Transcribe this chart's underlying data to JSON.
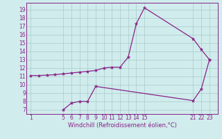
{
  "line1_x": [
    1,
    2,
    3,
    4,
    5,
    6,
    7,
    8,
    9,
    10,
    11,
    12,
    13,
    14,
    15,
    21,
    22,
    23
  ],
  "line1_y": [
    11.1,
    11.1,
    11.15,
    11.2,
    11.3,
    11.4,
    11.5,
    11.6,
    11.7,
    12.0,
    12.1,
    12.1,
    13.3,
    17.3,
    19.2,
    15.5,
    14.2,
    13.0
  ],
  "line2_x": [
    5,
    6,
    7,
    8,
    9,
    21,
    22,
    23
  ],
  "line2_y": [
    7.0,
    7.8,
    8.0,
    8.0,
    9.8,
    8.1,
    9.5,
    13.0
  ],
  "line_color": "#882288",
  "bg_color": "#d0ecec",
  "grid_color": "#aacaca",
  "xlabel": "Windchill (Refroidissement éolien,°C)",
  "yticks": [
    7,
    8,
    9,
    10,
    11,
    12,
    13,
    14,
    15,
    16,
    17,
    18,
    19
  ],
  "xticks": [
    1,
    5,
    6,
    7,
    8,
    9,
    10,
    11,
    12,
    13,
    14,
    15,
    21,
    22,
    23
  ],
  "xlim": [
    0.5,
    24.0
  ],
  "ylim": [
    6.5,
    19.8
  ],
  "marker_size": 2.5,
  "linewidth": 0.9,
  "tick_fontsize": 5.5,
  "xlabel_fontsize": 6.0
}
